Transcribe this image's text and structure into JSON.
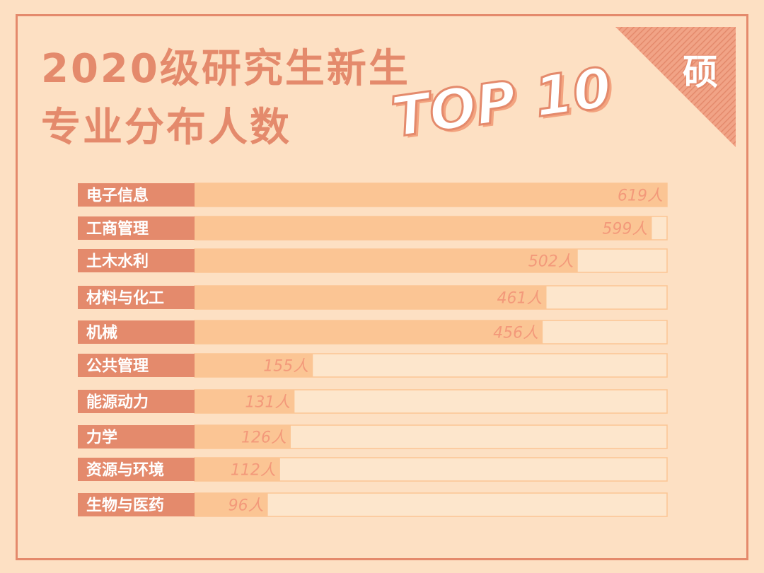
{
  "page": {
    "title_line1": "2020级研究生新生",
    "title_line2": "专业分布人数",
    "highlight": "TOP 10",
    "badge": "硕"
  },
  "colors": {
    "background": "#fde0c3",
    "accent": "#e48a6c",
    "bar_fill": "#fbc594",
    "track": "#fde6cc",
    "value_text": "#f3997a"
  },
  "chart_data": {
    "type": "bar",
    "orientation": "horizontal",
    "categories": [
      "电子信息",
      "工商管理",
      "土木水利",
      "材料与化工",
      "机械",
      "公共管理",
      "能源动力",
      "力学",
      "资源与环境",
      "生物与医药"
    ],
    "values": [
      619,
      599,
      502,
      461,
      456,
      155,
      131,
      126,
      112,
      96
    ],
    "value_labels": [
      "619人",
      "599人",
      "502人",
      "461人",
      "456人",
      "155人",
      "131人",
      "126人",
      "112人",
      "96人"
    ],
    "xlim": [
      0,
      619
    ],
    "title": "",
    "xlabel": "",
    "ylabel": "",
    "grid": false,
    "legend": "none"
  }
}
